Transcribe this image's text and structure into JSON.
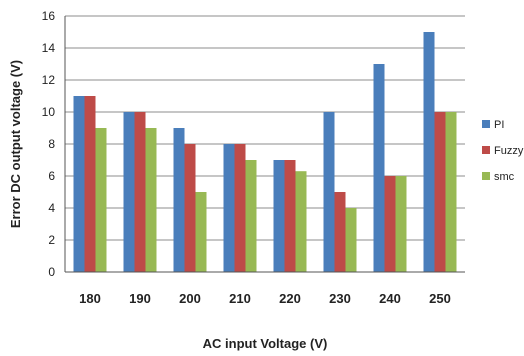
{
  "chart_data": {
    "type": "bar",
    "title": "",
    "xlabel": "AC input Voltage (V)",
    "ylabel": "Error DC output voltage (V)",
    "categories": [
      "180",
      "190",
      "200",
      "210",
      "220",
      "230",
      "240",
      "250"
    ],
    "ylim": [
      0,
      16
    ],
    "yticks": [
      0,
      2,
      4,
      6,
      8,
      10,
      12,
      14,
      16
    ],
    "grid": true,
    "legend_position": "right",
    "series": [
      {
        "name": "PI",
        "color": "#4a7ebb",
        "values": [
          11,
          10,
          9,
          8,
          7,
          10,
          13,
          15
        ]
      },
      {
        "name": "Fuzzy",
        "color": "#be4b48",
        "values": [
          11,
          10,
          8,
          8,
          7,
          5,
          6,
          10
        ]
      },
      {
        "name": "smc",
        "color": "#98b954",
        "values": [
          9,
          9,
          5,
          7,
          6.3,
          4,
          6,
          10
        ]
      }
    ]
  }
}
